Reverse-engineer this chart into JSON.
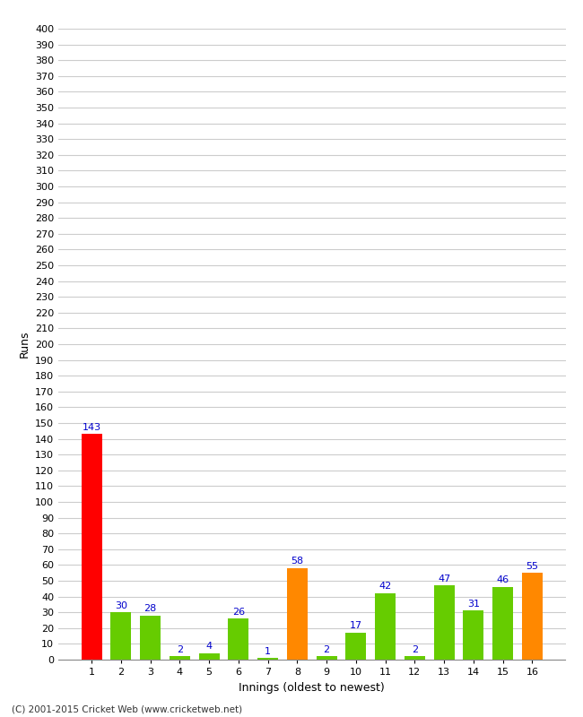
{
  "xlabel": "Innings (oldest to newest)",
  "ylabel": "Runs",
  "categories": [
    1,
    2,
    3,
    4,
    5,
    6,
    7,
    8,
    9,
    10,
    11,
    12,
    13,
    14,
    15,
    16
  ],
  "values": [
    143,
    30,
    28,
    2,
    4,
    26,
    1,
    58,
    2,
    17,
    42,
    2,
    47,
    31,
    46,
    55
  ],
  "bar_colors": [
    "#ff0000",
    "#66cc00",
    "#66cc00",
    "#66cc00",
    "#66cc00",
    "#66cc00",
    "#66cc00",
    "#ff8800",
    "#66cc00",
    "#66cc00",
    "#66cc00",
    "#66cc00",
    "#66cc00",
    "#66cc00",
    "#66cc00",
    "#ff8800"
  ],
  "label_color": "#0000cc",
  "ylim": [
    0,
    400
  ],
  "yticks": [
    0,
    10,
    20,
    30,
    40,
    50,
    60,
    70,
    80,
    90,
    100,
    110,
    120,
    130,
    140,
    150,
    160,
    170,
    180,
    190,
    200,
    210,
    220,
    230,
    240,
    250,
    260,
    270,
    280,
    290,
    300,
    310,
    320,
    330,
    340,
    350,
    360,
    370,
    380,
    390,
    400
  ],
  "background_color": "#ffffff",
  "grid_color": "#cccccc",
  "footer": "(C) 2001-2015 Cricket Web (www.cricketweb.net)"
}
